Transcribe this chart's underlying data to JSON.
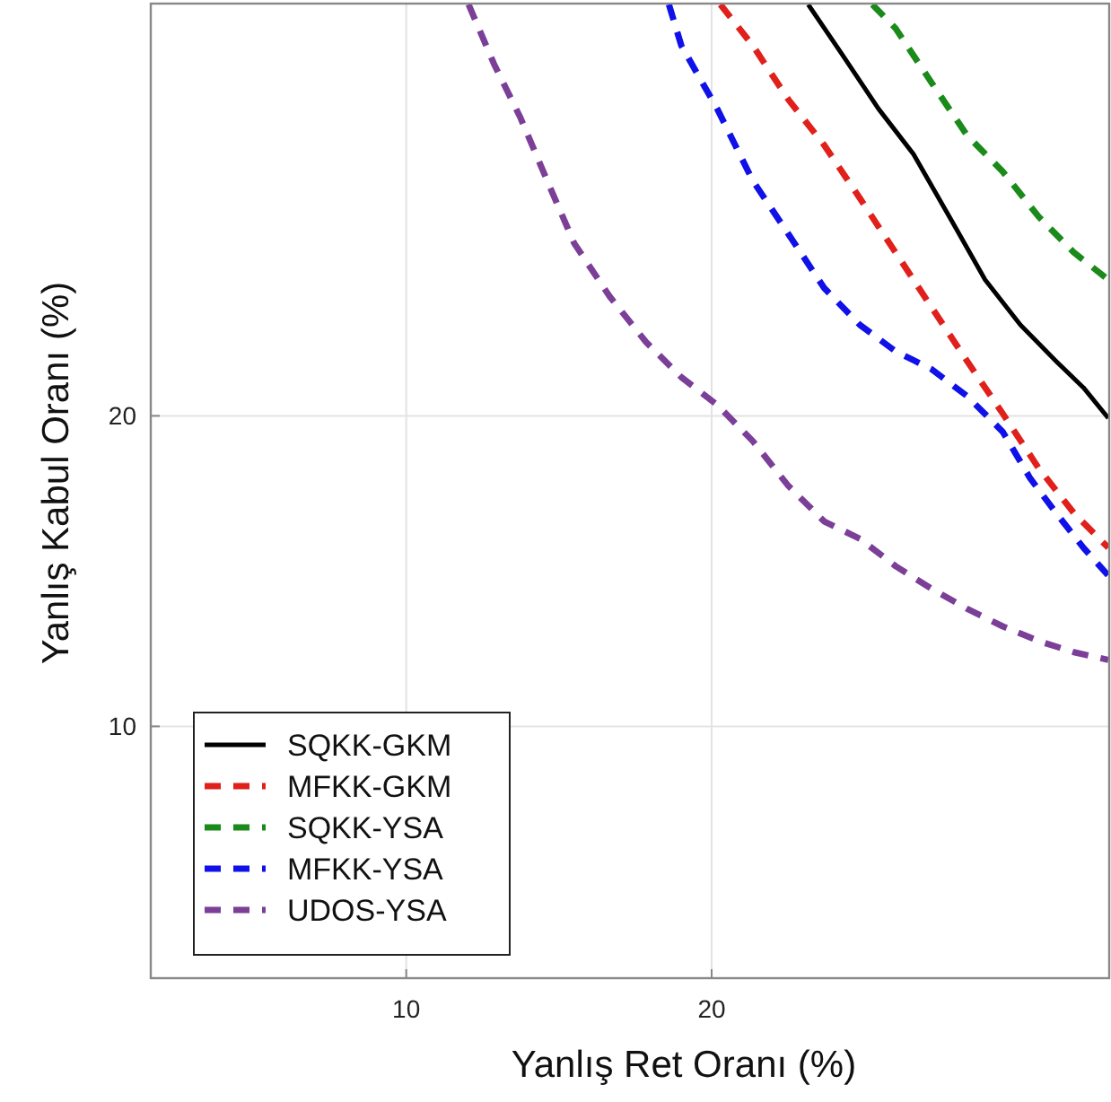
{
  "chart_data": {
    "type": "line",
    "xlabel": "Yanlış Ret Oranı (%)",
    "ylabel": "Yanlış Kabul Oranı (%)",
    "log": "xy",
    "xlim": [
      5.6,
      49.3
    ],
    "ylim": [
      5.7,
      50.2
    ],
    "xticks": [
      10,
      20
    ],
    "yticks": [
      10,
      20
    ],
    "grid": true,
    "legend": "bottom left",
    "series": [
      {
        "name": "SQKK-GKM",
        "color": "#000000",
        "line_style": "solid",
        "x": [
          24.9,
          26.9,
          29.2,
          31.6,
          34.3,
          37.2,
          40.3,
          43.7,
          46.5,
          49.2
        ],
        "values": [
          50.1,
          44.8,
          39.7,
          35.9,
          31.2,
          27.1,
          24.5,
          22.6,
          21.3,
          19.9
        ]
      },
      {
        "name": "MFKK-GKM",
        "color": "#e0201b",
        "line_style": "dashed",
        "x": [
          20.4,
          21.96,
          23.81,
          25.82,
          28.0,
          30.36,
          32.93,
          35.71,
          38.72,
          42.0,
          45.5,
          49.2
        ],
        "values": [
          50.1,
          45.7,
          40.5,
          36.6,
          32.5,
          28.8,
          25.5,
          22.6,
          20.1,
          17.8,
          16.1,
          14.9
        ]
      },
      {
        "name": "SQKK-YSA",
        "color": "#1a8a1a",
        "line_style": "dashed",
        "x": [
          28.8,
          30.36,
          32.93,
          35.71,
          38.72,
          42.0,
          45.5,
          49.2
        ],
        "values": [
          50.1,
          47.5,
          42.1,
          37.4,
          34.5,
          31.2,
          28.8,
          27.1
        ]
      },
      {
        "name": "MFKK-YSA",
        "color": "#1010e8",
        "line_style": "dashed",
        "x": [
          18.15,
          18.67,
          20.25,
          21.96,
          23.81,
          25.82,
          28.0,
          30.36,
          32.93,
          35.71,
          38.72,
          41.2,
          43.7,
          46.5,
          49.2
        ],
        "values": [
          50.1,
          45.7,
          39.7,
          33.8,
          30.0,
          26.6,
          24.5,
          23.1,
          22.2,
          20.9,
          19.3,
          17.4,
          16.1,
          14.9,
          14.0
        ]
      },
      {
        "name": "UDOS-YSA",
        "color": "#7b3f98",
        "line_style": "dashed",
        "x": [
          11.52,
          12.2,
          12.96,
          13.77,
          14.64,
          15.87,
          17.22,
          18.67,
          20.25,
          21.96,
          23.81,
          25.82,
          28.0,
          30.36,
          32.93,
          35.71,
          38.72,
          42.0,
          45.5,
          49.2
        ],
        "values": [
          50.1,
          43.9,
          38.9,
          33.8,
          29.4,
          26.1,
          23.6,
          21.8,
          20.5,
          18.9,
          17.1,
          15.8,
          15.2,
          14.3,
          13.6,
          13.0,
          12.5,
          12.1,
          11.8,
          11.6
        ]
      }
    ]
  }
}
